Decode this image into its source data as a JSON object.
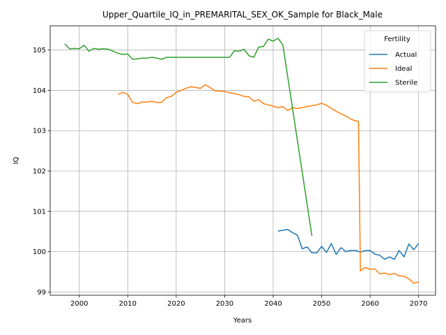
{
  "chart_data": {
    "type": "line",
    "title": "Upper_Quartile_IQ_in_PREMARITAL_SEX_OK_Sample for Black_Male",
    "xlabel": "Years",
    "ylabel": "IQ",
    "xlim": [
      1994,
      2073.5
    ],
    "ylim": [
      98.92,
      105.6
    ],
    "xticks": [
      2000,
      2010,
      2020,
      2030,
      2040,
      2050,
      2060,
      2070
    ],
    "yticks": [
      99,
      100,
      101,
      102,
      103,
      104,
      105
    ],
    "grid": true,
    "legend": {
      "title": "Fertility",
      "position": "top-right"
    },
    "series": [
      {
        "name": "Actual",
        "color": "#1f77b4",
        "points": [
          [
            2041,
            100.51
          ],
          [
            2042,
            100.53
          ],
          [
            2043,
            100.55
          ],
          [
            2044,
            100.47
          ],
          [
            2045,
            100.41
          ],
          [
            2046,
            100.07
          ],
          [
            2047,
            100.12
          ],
          [
            2048,
            99.97
          ],
          [
            2049,
            99.97
          ],
          [
            2050,
            100.13
          ],
          [
            2051,
            99.98
          ],
          [
            2052,
            100.2
          ],
          [
            2053,
            99.93
          ],
          [
            2054,
            100.1
          ],
          [
            2055,
            100.0
          ],
          [
            2056,
            100.03
          ],
          [
            2057,
            100.03
          ],
          [
            2058,
            99.99
          ],
          [
            2059,
            100.03
          ],
          [
            2060,
            100.03
          ],
          [
            2061,
            99.94
          ],
          [
            2062,
            99.91
          ],
          [
            2063,
            99.81
          ],
          [
            2064,
            99.87
          ],
          [
            2065,
            99.81
          ],
          [
            2066,
            100.03
          ],
          [
            2067,
            99.87
          ],
          [
            2068,
            100.19
          ],
          [
            2069,
            100.05
          ],
          [
            2070,
            100.2
          ]
        ]
      },
      {
        "name": "Ideal",
        "color": "#ff7f0e",
        "points": [
          [
            2008,
            103.9
          ],
          [
            2009,
            103.95
          ],
          [
            2010,
            103.9
          ],
          [
            2011,
            103.7
          ],
          [
            2012,
            103.67
          ],
          [
            2013,
            103.71
          ],
          [
            2014,
            103.71
          ],
          [
            2015,
            103.73
          ],
          [
            2016,
            103.7
          ],
          [
            2017,
            103.7
          ],
          [
            2018,
            103.82
          ],
          [
            2019,
            103.85
          ],
          [
            2020,
            103.95
          ],
          [
            2021,
            104.0
          ],
          [
            2022,
            104.05
          ],
          [
            2023,
            104.09
          ],
          [
            2024,
            104.07
          ],
          [
            2025,
            104.05
          ],
          [
            2026,
            104.14
          ],
          [
            2027,
            104.07
          ],
          [
            2028,
            103.99
          ],
          [
            2029,
            103.98
          ],
          [
            2030,
            103.97
          ],
          [
            2031,
            103.94
          ],
          [
            2032,
            103.92
          ],
          [
            2033,
            103.89
          ],
          [
            2034,
            103.85
          ],
          [
            2035,
            103.84
          ],
          [
            2036,
            103.73
          ],
          [
            2037,
            103.77
          ],
          [
            2038,
            103.67
          ],
          [
            2039,
            103.64
          ],
          [
            2040,
            103.61
          ],
          [
            2041,
            103.57
          ],
          [
            2042,
            103.6
          ],
          [
            2043,
            103.5
          ],
          [
            2044,
            103.57
          ],
          [
            2045,
            103.55
          ],
          [
            2046,
            103.57
          ],
          [
            2047,
            103.6
          ],
          [
            2048,
            103.62
          ],
          [
            2049,
            103.64
          ],
          [
            2050,
            103.68
          ],
          [
            2051,
            103.63
          ],
          [
            2052,
            103.55
          ],
          [
            2053,
            103.48
          ],
          [
            2054,
            103.42
          ],
          [
            2055,
            103.36
          ],
          [
            2056,
            103.29
          ],
          [
            2057,
            103.24
          ],
          [
            2057.6,
            103.23
          ],
          [
            2058,
            99.52
          ],
          [
            2059,
            99.61
          ],
          [
            2060,
            99.56
          ],
          [
            2061,
            99.57
          ],
          [
            2062,
            99.45
          ],
          [
            2063,
            99.47
          ],
          [
            2064,
            99.43
          ],
          [
            2065,
            99.46
          ],
          [
            2066,
            99.4
          ],
          [
            2067,
            99.39
          ],
          [
            2068,
            99.33
          ],
          [
            2069,
            99.22
          ],
          [
            2070,
            99.25
          ]
        ]
      },
      {
        "name": "Sterile",
        "color": "#2ca02c",
        "points": [
          [
            1997,
            105.15
          ],
          [
            1998,
            105.03
          ],
          [
            1999,
            105.04
          ],
          [
            2000,
            105.03
          ],
          [
            2001,
            105.12
          ],
          [
            2002,
            104.97
          ],
          [
            2003,
            105.04
          ],
          [
            2004,
            105.02
          ],
          [
            2005,
            105.03
          ],
          [
            2006,
            105.02
          ],
          [
            2007,
            104.97
          ],
          [
            2008,
            104.92
          ],
          [
            2009,
            104.89
          ],
          [
            2010,
            104.9
          ],
          [
            2011,
            104.77
          ],
          [
            2012,
            104.78
          ],
          [
            2013,
            104.8
          ],
          [
            2014,
            104.8
          ],
          [
            2015,
            104.82
          ],
          [
            2016,
            104.8
          ],
          [
            2017,
            104.77
          ],
          [
            2018,
            104.82
          ],
          [
            2019,
            104.82
          ],
          [
            2020,
            104.82
          ],
          [
            2021,
            104.82
          ],
          [
            2022,
            104.82
          ],
          [
            2023,
            104.82
          ],
          [
            2024,
            104.82
          ],
          [
            2025,
            104.82
          ],
          [
            2026,
            104.82
          ],
          [
            2027,
            104.82
          ],
          [
            2028,
            104.82
          ],
          [
            2029,
            104.82
          ],
          [
            2030,
            104.82
          ],
          [
            2031,
            104.82
          ],
          [
            2032,
            104.98
          ],
          [
            2033,
            104.97
          ],
          [
            2034,
            105.02
          ],
          [
            2035,
            104.86
          ],
          [
            2036,
            104.82
          ],
          [
            2037,
            105.07
          ],
          [
            2038,
            105.09
          ],
          [
            2039,
            105.27
          ],
          [
            2040,
            105.22
          ],
          [
            2041,
            105.29
          ],
          [
            2042,
            105.13
          ],
          [
            2048,
            100.39
          ]
        ]
      }
    ]
  }
}
